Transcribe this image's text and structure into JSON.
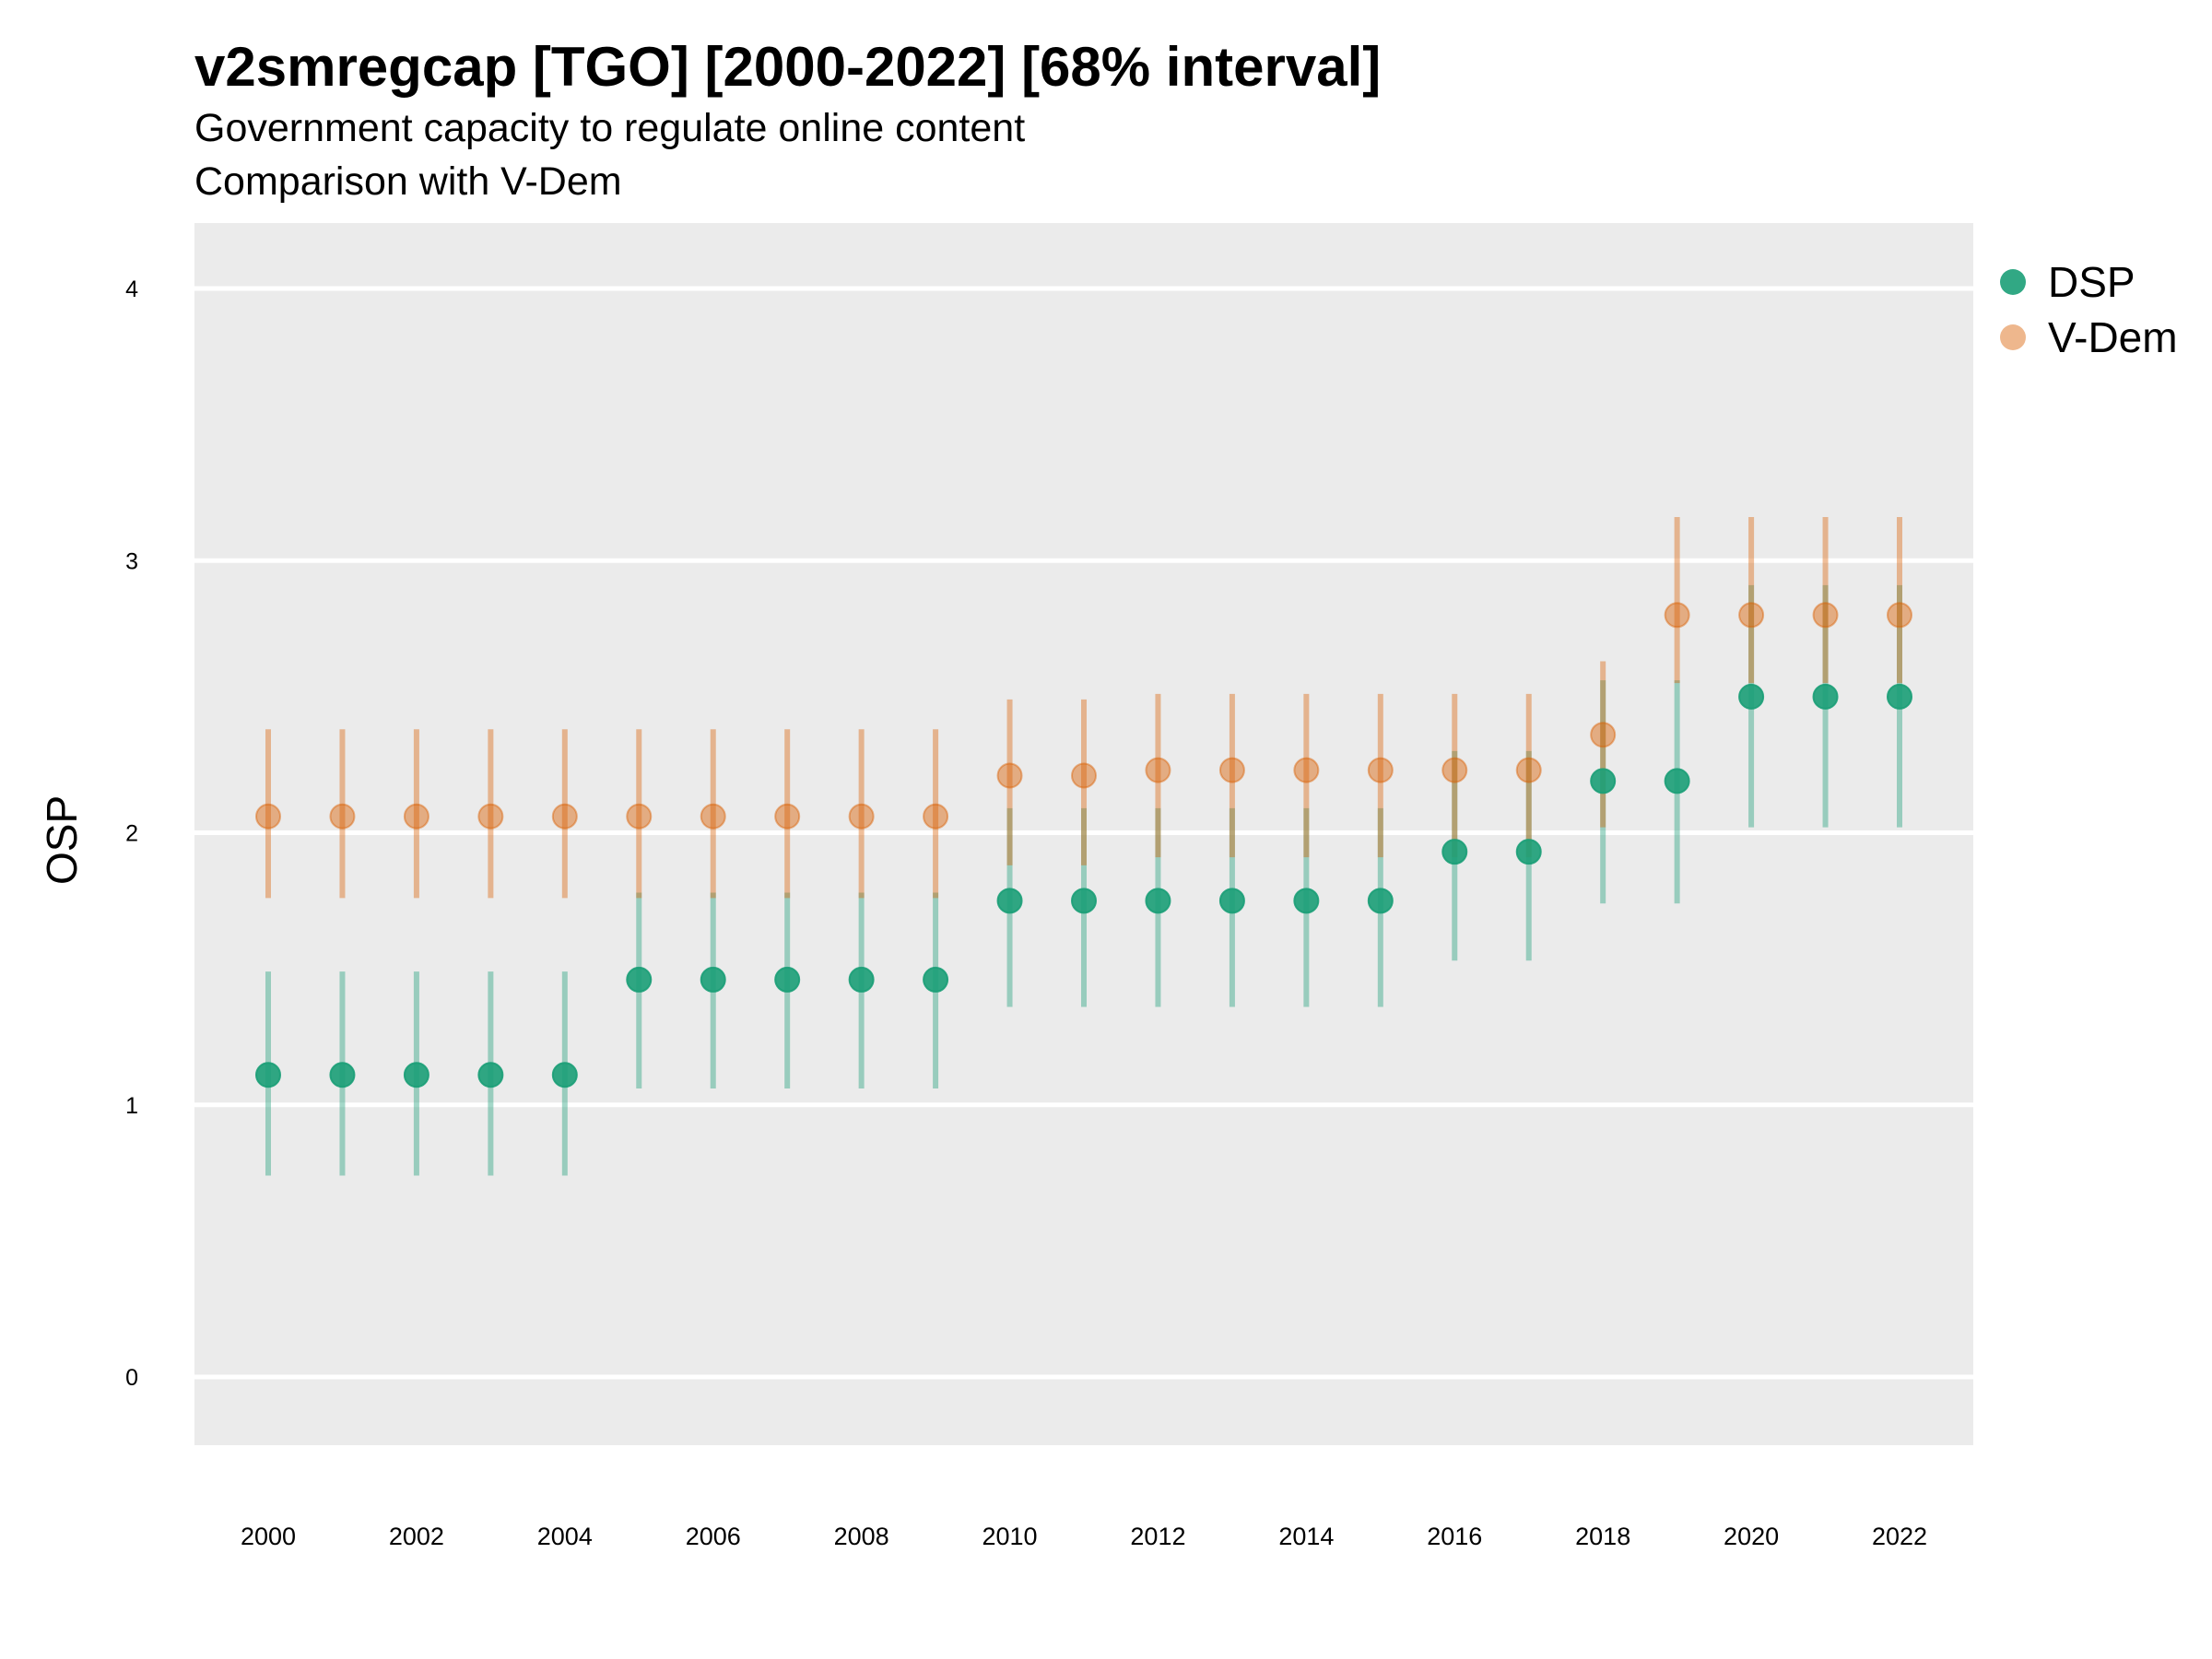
{
  "chart_data": {
    "type": "scatter",
    "title": "v2smregcap [TGO] [2000-2022] [68% interval]",
    "subtitle": [
      "Government capacity to regulate online content",
      "Comparison with V-Dem"
    ],
    "ylabel": "OSP",
    "xlabel": "",
    "x": [
      2000,
      2001,
      2002,
      2003,
      2004,
      2005,
      2006,
      2007,
      2008,
      2009,
      2010,
      2011,
      2012,
      2013,
      2014,
      2015,
      2016,
      2017,
      2018,
      2019,
      2020,
      2021,
      2022
    ],
    "x_ticks": [
      "2000",
      "2002",
      "2004",
      "2006",
      "2008",
      "2010",
      "2012",
      "2014",
      "2016",
      "2018",
      "2020",
      "2022"
    ],
    "y_ticks": [
      "0",
      "1",
      "2",
      "3",
      "4"
    ],
    "ylim": [
      -0.25,
      4.25
    ],
    "grid": true,
    "legend_position": "right",
    "series": [
      {
        "name": "DSP",
        "color": "#1b9e77",
        "values": [
          1.11,
          1.11,
          1.11,
          1.11,
          1.11,
          1.46,
          1.46,
          1.46,
          1.46,
          1.46,
          1.75,
          1.75,
          1.75,
          1.75,
          1.75,
          1.75,
          1.93,
          1.93,
          2.19,
          2.19,
          2.5,
          2.5,
          2.5
        ],
        "lower": [
          0.74,
          0.74,
          0.74,
          0.74,
          0.74,
          1.06,
          1.06,
          1.06,
          1.06,
          1.06,
          1.36,
          1.36,
          1.36,
          1.36,
          1.36,
          1.36,
          1.53,
          1.53,
          1.74,
          1.74,
          2.02,
          2.02,
          2.02
        ],
        "upper": [
          1.49,
          1.49,
          1.49,
          1.49,
          1.49,
          1.78,
          1.78,
          1.78,
          1.78,
          1.78,
          2.09,
          2.09,
          2.09,
          2.09,
          2.09,
          2.09,
          2.3,
          2.3,
          2.56,
          2.56,
          2.91,
          2.91,
          2.91
        ]
      },
      {
        "name": "V-Dem",
        "color": "#d95f02",
        "values": [
          2.06,
          2.06,
          2.06,
          2.06,
          2.06,
          2.06,
          2.06,
          2.06,
          2.06,
          2.06,
          2.21,
          2.21,
          2.23,
          2.23,
          2.23,
          2.23,
          2.23,
          2.23,
          2.36,
          2.8,
          2.8,
          2.8,
          2.8
        ],
        "lower": [
          1.76,
          1.76,
          1.76,
          1.76,
          1.76,
          1.76,
          1.76,
          1.76,
          1.76,
          1.76,
          1.88,
          1.88,
          1.91,
          1.91,
          1.91,
          1.91,
          1.91,
          1.91,
          2.02,
          2.55,
          2.55,
          2.55,
          2.55
        ],
        "upper": [
          2.38,
          2.38,
          2.38,
          2.38,
          2.38,
          2.38,
          2.38,
          2.38,
          2.38,
          2.38,
          2.49,
          2.49,
          2.51,
          2.51,
          2.51,
          2.51,
          2.51,
          2.51,
          2.63,
          3.16,
          3.16,
          3.16,
          3.16
        ]
      }
    ]
  }
}
